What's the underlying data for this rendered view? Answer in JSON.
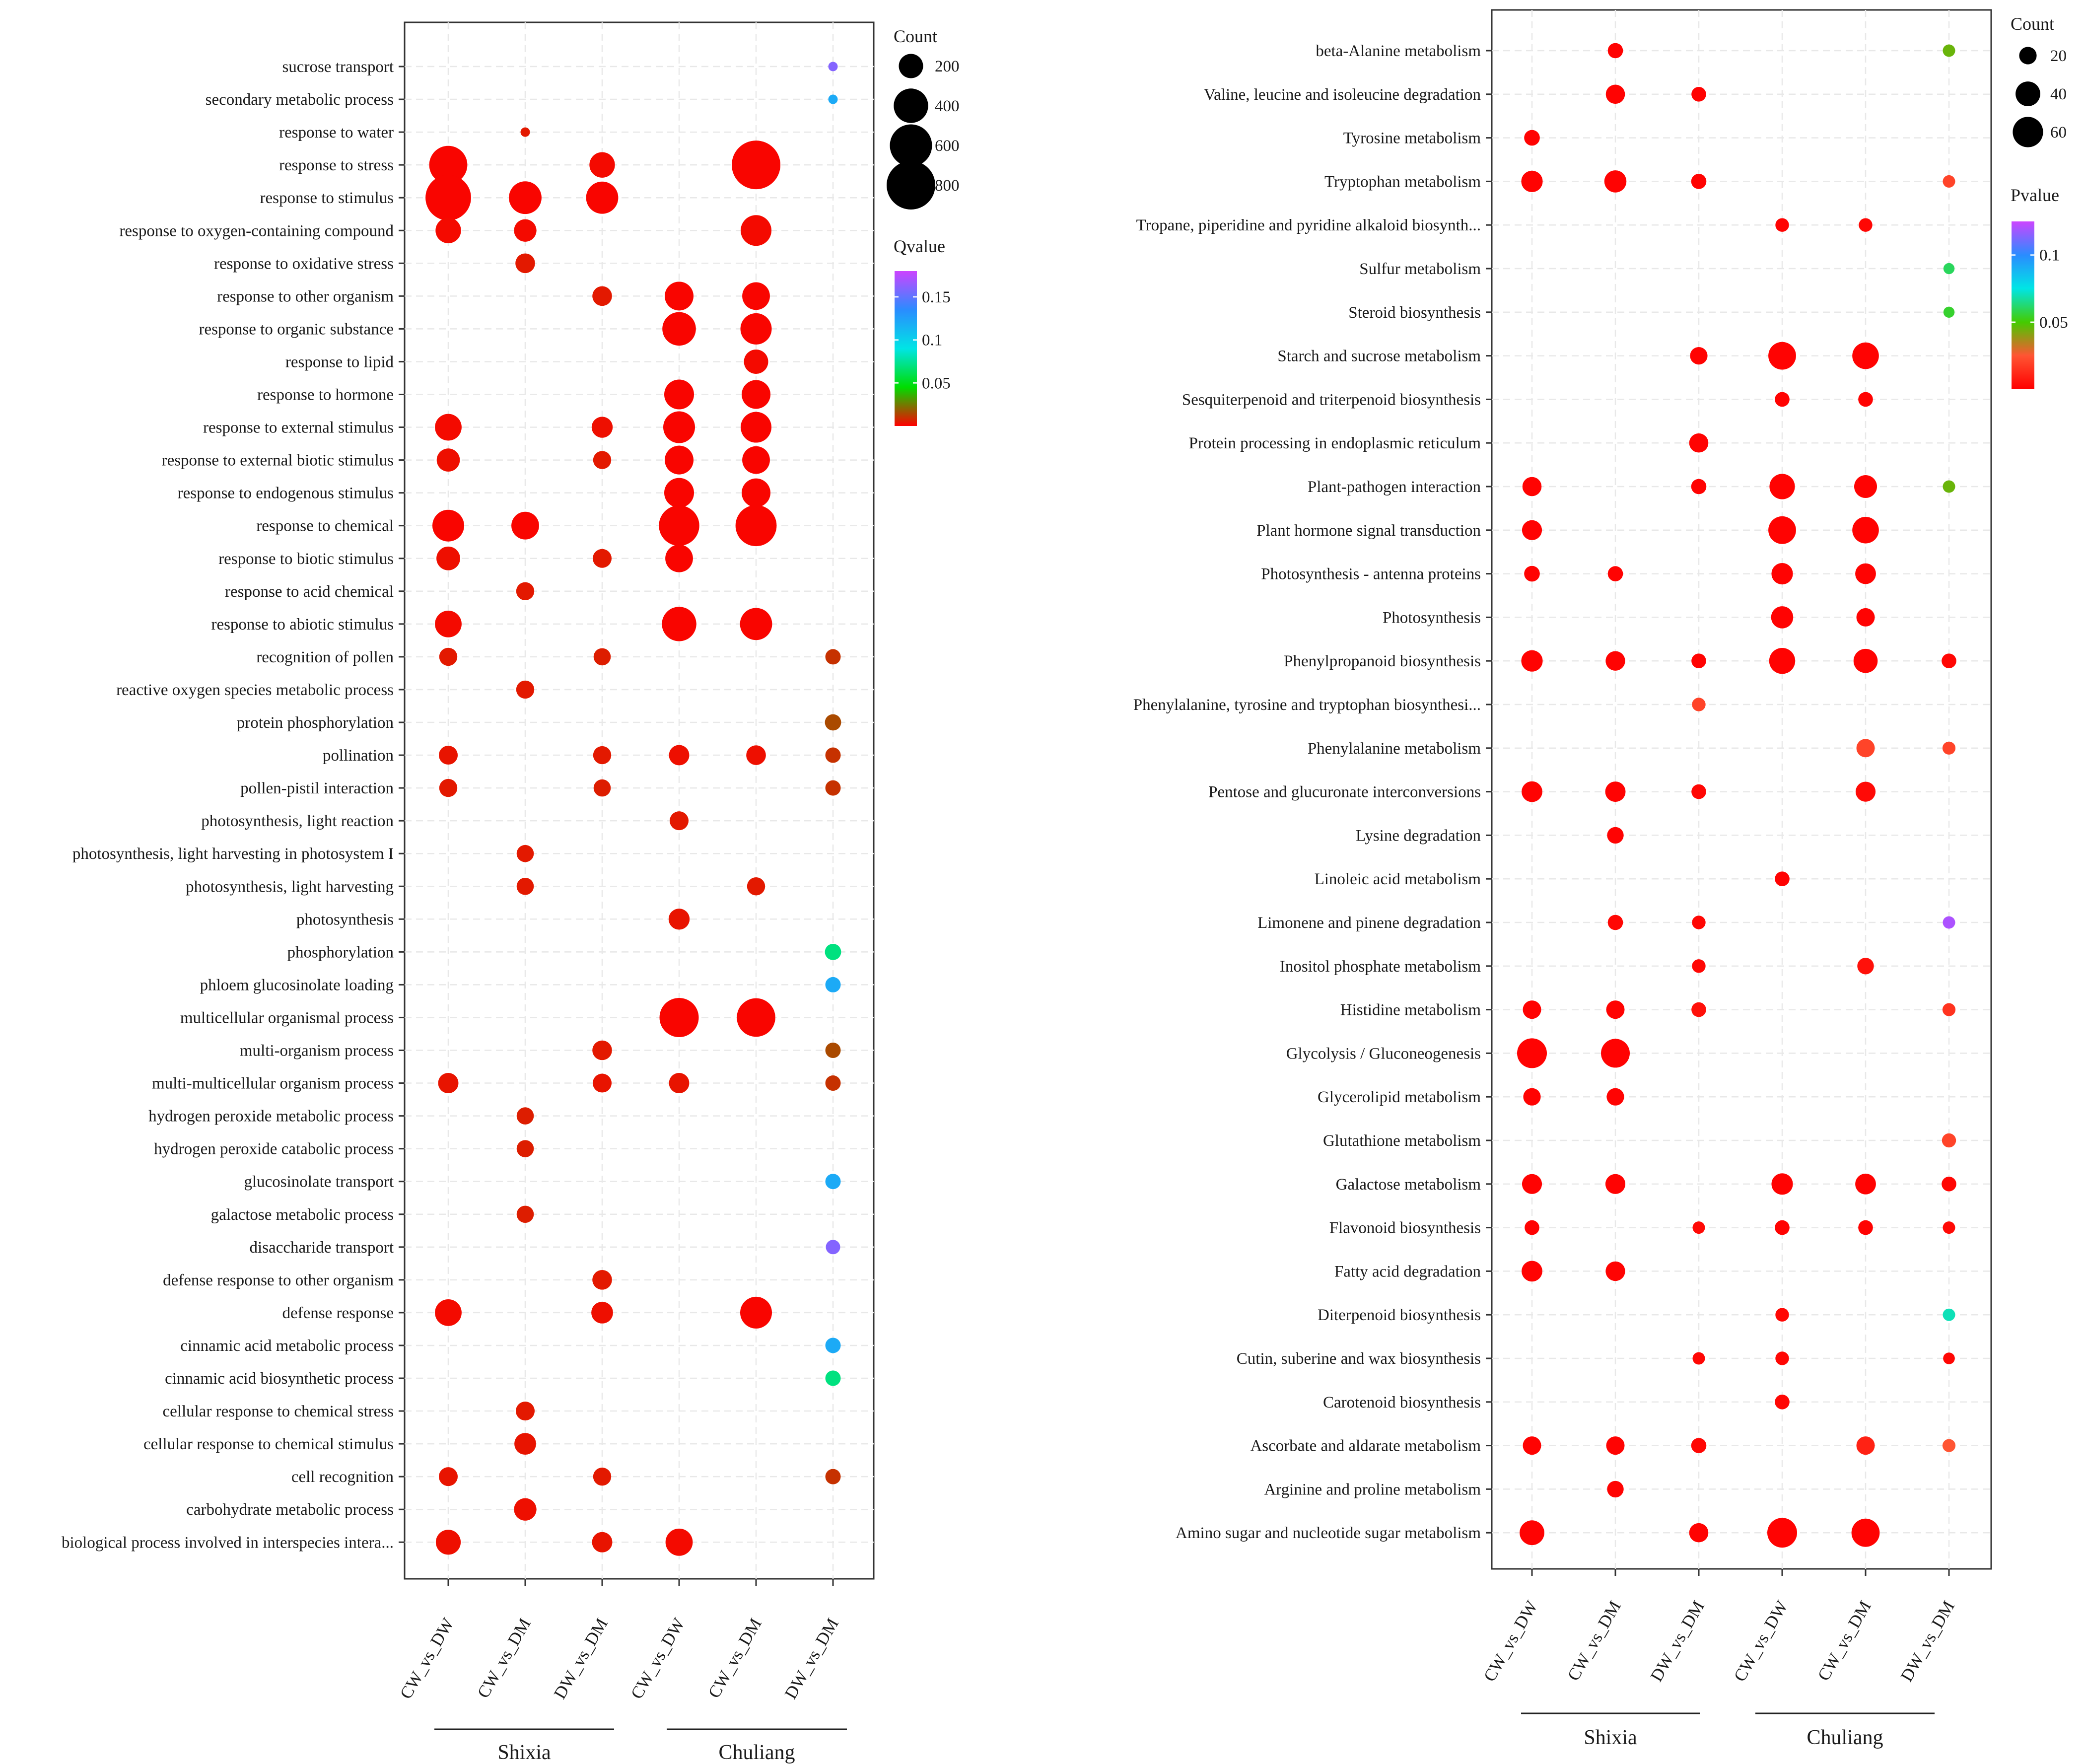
{
  "chart_data": [
    {
      "type": "scatter",
      "subtype": "bubble",
      "panel": "left",
      "xlabel": "",
      "ylabel": "",
      "x_categories": [
        "CW_vs_DW",
        "CW_vs_DM",
        "DW_vs_DM",
        "CW_vs_DW",
        "CW_vs_DM",
        "DW_vs_DM"
      ],
      "groups": [
        {
          "label": "Shixia",
          "columns": [
            0,
            1,
            2
          ]
        },
        {
          "label": "Chuliang",
          "columns": [
            3,
            4,
            5
          ]
        }
      ],
      "y_categories": [
        "sucrose transport",
        "secondary metabolic process",
        "response to water",
        "response to stress",
        "response to stimulus",
        "response to oxygen-containing compound",
        "response to oxidative stress",
        "response to other organism",
        "response to organic substance",
        "response to lipid",
        "response to hormone",
        "response to external stimulus",
        "response to external biotic stimulus",
        "response to endogenous stimulus",
        "response to chemical",
        "response to biotic stimulus",
        "response to acid chemical",
        "response to abiotic stimulus",
        "recognition of pollen",
        "reactive oxygen species metabolic process",
        "protein phosphorylation",
        "pollination",
        "pollen-pistil interaction",
        "photosynthesis, light reaction",
        "photosynthesis, light harvesting in photosystem I",
        "photosynthesis, light harvesting",
        "photosynthesis",
        "phosphorylation",
        "phloem glucosinolate loading",
        "multicellular organismal process",
        "multi-organism process",
        "multi-multicellular organism process",
        "hydrogen peroxide metabolic process",
        "hydrogen peroxide catabolic process",
        "glucosinolate transport",
        "galactose metabolic process",
        "disaccharide transport",
        "defense response to other organism",
        "defense response",
        "cinnamic acid metabolic process",
        "cinnamic acid biosynthetic process",
        "cellular response to chemical stress",
        "cellular response to chemical stimulus",
        "cell recognition",
        "carbohydrate metabolic process",
        "biological process involved in interspecies intera..."
      ],
      "size_legend": {
        "title": "Count",
        "values": [
          200,
          400,
          600,
          800
        ]
      },
      "size_range": [
        0,
        900
      ],
      "color_legend": {
        "title": "Qvalue",
        "min": 0,
        "max": 0.18,
        "ticks": [
          0.05,
          0.1,
          0.15
        ],
        "colors": [
          "#ff0000",
          "#00dd00",
          "#00e5e5",
          "#2a8cff",
          "#cc44ff"
        ]
      },
      "points": [
        [
          0,
          5,
          30,
          0.16
        ],
        [
          1,
          5,
          30,
          0.12
        ],
        [
          2,
          1,
          30,
          0.005
        ],
        [
          3,
          0,
          490,
          0.001
        ],
        [
          3,
          2,
          220,
          0.002
        ],
        [
          3,
          4,
          800,
          0.001
        ],
        [
          4,
          0,
          700,
          0.001
        ],
        [
          4,
          1,
          360,
          0.001
        ],
        [
          4,
          2,
          350,
          0.001
        ],
        [
          5,
          0,
          220,
          0.002
        ],
        [
          5,
          1,
          170,
          0.002
        ],
        [
          5,
          4,
          320,
          0.002
        ],
        [
          6,
          1,
          130,
          0.005
        ],
        [
          7,
          2,
          130,
          0.005
        ],
        [
          7,
          3,
          280,
          0.001
        ],
        [
          7,
          4,
          260,
          0.001
        ],
        [
          8,
          3,
          380,
          0.001
        ],
        [
          8,
          4,
          330,
          0.001
        ],
        [
          9,
          4,
          200,
          0.002
        ],
        [
          10,
          3,
          300,
          0.001
        ],
        [
          10,
          4,
          280,
          0.001
        ],
        [
          11,
          0,
          240,
          0.002
        ],
        [
          11,
          2,
          150,
          0.003
        ],
        [
          11,
          3,
          340,
          0.001
        ],
        [
          11,
          4,
          320,
          0.001
        ],
        [
          12,
          0,
          180,
          0.003
        ],
        [
          12,
          2,
          110,
          0.005
        ],
        [
          12,
          3,
          280,
          0.001
        ],
        [
          12,
          4,
          260,
          0.001
        ],
        [
          13,
          3,
          300,
          0.001
        ],
        [
          13,
          4,
          280,
          0.001
        ],
        [
          14,
          0,
          340,
          0.001
        ],
        [
          14,
          1,
          260,
          0.001
        ],
        [
          14,
          3,
          550,
          0.001
        ],
        [
          14,
          4,
          570,
          0.001
        ],
        [
          15,
          0,
          190,
          0.003
        ],
        [
          15,
          2,
          120,
          0.005
        ],
        [
          15,
          3,
          260,
          0.001
        ],
        [
          16,
          1,
          110,
          0.005
        ],
        [
          17,
          0,
          240,
          0.002
        ],
        [
          17,
          3,
          400,
          0.001
        ],
        [
          17,
          4,
          350,
          0.001
        ],
        [
          18,
          0,
          110,
          0.005
        ],
        [
          18,
          2,
          100,
          0.006
        ],
        [
          18,
          5,
          80,
          0.01
        ],
        [
          19,
          1,
          110,
          0.005
        ],
        [
          20,
          5,
          90,
          0.015
        ],
        [
          21,
          0,
          120,
          0.004
        ],
        [
          21,
          2,
          110,
          0.005
        ],
        [
          21,
          3,
          140,
          0.003
        ],
        [
          21,
          4,
          130,
          0.003
        ],
        [
          21,
          5,
          80,
          0.01
        ],
        [
          22,
          0,
          110,
          0.005
        ],
        [
          22,
          2,
          100,
          0.006
        ],
        [
          22,
          5,
          80,
          0.01
        ],
        [
          23,
          3,
          120,
          0.005
        ],
        [
          24,
          1,
          100,
          0.005
        ],
        [
          25,
          1,
          100,
          0.005
        ],
        [
          25,
          4,
          110,
          0.005
        ],
        [
          26,
          3,
          150,
          0.004
        ],
        [
          27,
          5,
          90,
          0.07
        ],
        [
          28,
          5,
          80,
          0.12
        ],
        [
          29,
          3,
          520,
          0.001
        ],
        [
          29,
          4,
          500,
          0.001
        ],
        [
          30,
          2,
          130,
          0.005
        ],
        [
          30,
          5,
          80,
          0.015
        ],
        [
          31,
          0,
          140,
          0.004
        ],
        [
          31,
          2,
          120,
          0.004
        ],
        [
          31,
          3,
          140,
          0.004
        ],
        [
          31,
          5,
          80,
          0.01
        ],
        [
          32,
          1,
          100,
          0.006
        ],
        [
          33,
          1,
          100,
          0.006
        ],
        [
          34,
          5,
          80,
          0.12
        ],
        [
          35,
          1,
          100,
          0.006
        ],
        [
          36,
          5,
          70,
          0.16
        ],
        [
          37,
          2,
          130,
          0.005
        ],
        [
          38,
          0,
          240,
          0.002
        ],
        [
          38,
          2,
          160,
          0.003
        ],
        [
          38,
          4,
          340,
          0.001
        ],
        [
          39,
          5,
          80,
          0.12
        ],
        [
          40,
          5,
          80,
          0.07
        ],
        [
          41,
          1,
          120,
          0.005
        ],
        [
          42,
          1,
          160,
          0.004
        ],
        [
          43,
          0,
          120,
          0.004
        ],
        [
          43,
          2,
          110,
          0.005
        ],
        [
          43,
          5,
          80,
          0.01
        ],
        [
          44,
          1,
          170,
          0.003
        ],
        [
          45,
          0,
          210,
          0.003
        ],
        [
          45,
          2,
          140,
          0.004
        ],
        [
          45,
          3,
          250,
          0.002
        ]
      ]
    },
    {
      "type": "scatter",
      "subtype": "bubble",
      "panel": "right",
      "xlabel": "",
      "ylabel": "",
      "x_categories": [
        "CW_vs_DW",
        "CW_vs_DM",
        "DW_vs_DM",
        "CW_vs_DW",
        "CW_vs_DM",
        "DW_vs_DM"
      ],
      "groups": [
        {
          "label": "Shixia",
          "columns": [
            0,
            1,
            2
          ]
        },
        {
          "label": "Chuliang",
          "columns": [
            3,
            4,
            5
          ]
        }
      ],
      "y_categories": [
        "beta-Alanine metabolism",
        "Valine, leucine and isoleucine degradation",
        "Tyrosine metabolism",
        "Tryptophan metabolism",
        "Tropane, piperidine and pyridine alkaloid biosynth...",
        "Sulfur metabolism",
        "Steroid biosynthesis",
        "Starch and sucrose metabolism",
        "Sesquiterpenoid and triterpenoid biosynthesis",
        "Protein processing in endoplasmic reticulum",
        "Plant-pathogen interaction",
        "Plant hormone signal transduction",
        "Photosynthesis - antenna proteins",
        "Photosynthesis",
        "Phenylpropanoid biosynthesis",
        "Phenylalanine, tyrosine and tryptophan biosynthesi...",
        "Phenylalanine metabolism",
        "Pentose and glucuronate interconversions",
        "Lysine degradation",
        "Linoleic acid metabolism",
        "Limonene and pinene degradation",
        "Inositol phosphate metabolism",
        "Histidine metabolism",
        "Glycolysis / Gluconeogenesis",
        "Glycerolipid metabolism",
        "Glutathione metabolism",
        "Galactose metabolism",
        "Flavonoid biosynthesis",
        "Fatty acid degradation",
        "Diterpenoid biosynthesis",
        "Cutin, suberine and wax biosynthesis",
        "Carotenoid biosynthesis",
        "Ascorbate and aldarate metabolism",
        "Arginine and proline metabolism",
        "Amino sugar and nucleotide sugar metabolism"
      ],
      "size_legend": {
        "title": "Count",
        "values": [
          20,
          40,
          60
        ]
      },
      "size_range": [
        0,
        70
      ],
      "color_legend": {
        "title": "Pvalue",
        "min": 0,
        "max": 0.125,
        "ticks": [
          0.05,
          0.1
        ],
        "colors": [
          "#ff0000",
          "#ff5533",
          "#44cc00",
          "#00e5e5",
          "#2a8cff",
          "#cc44ff"
        ]
      },
      "points": [
        [
          0,
          1,
          15,
          0.001
        ],
        [
          0,
          5,
          10,
          0.045
        ],
        [
          1,
          1,
          24,
          0.001
        ],
        [
          1,
          2,
          14,
          0.001
        ],
        [
          2,
          0,
          16,
          0.001
        ],
        [
          3,
          0,
          30,
          0.001
        ],
        [
          3,
          1,
          32,
          0.001
        ],
        [
          3,
          2,
          15,
          0.001
        ],
        [
          3,
          5,
          10,
          0.02
        ],
        [
          4,
          3,
          12,
          0.001
        ],
        [
          4,
          4,
          12,
          0.002
        ],
        [
          5,
          5,
          8,
          0.06
        ],
        [
          6,
          5,
          8,
          0.055
        ],
        [
          7,
          2,
          20,
          0.001
        ],
        [
          7,
          3,
          50,
          0.001
        ],
        [
          7,
          4,
          46,
          0.001
        ],
        [
          8,
          3,
          14,
          0.001
        ],
        [
          8,
          4,
          14,
          0.001
        ],
        [
          9,
          2,
          24,
          0.001
        ],
        [
          10,
          0,
          24,
          0.001
        ],
        [
          10,
          2,
          15,
          0.001
        ],
        [
          10,
          3,
          42,
          0.001
        ],
        [
          10,
          4,
          34,
          0.001
        ],
        [
          10,
          5,
          10,
          0.045
        ],
        [
          11,
          0,
          26,
          0.001
        ],
        [
          11,
          3,
          50,
          0.001
        ],
        [
          11,
          4,
          46,
          0.001
        ],
        [
          12,
          0,
          16,
          0.001
        ],
        [
          12,
          1,
          15,
          0.001
        ],
        [
          12,
          3,
          30,
          0.001
        ],
        [
          12,
          4,
          28,
          0.001
        ],
        [
          13,
          3,
          32,
          0.001
        ],
        [
          13,
          4,
          22,
          0.001
        ],
        [
          14,
          0,
          30,
          0.001
        ],
        [
          14,
          1,
          25,
          0.001
        ],
        [
          14,
          2,
          14,
          0.001
        ],
        [
          14,
          3,
          44,
          0.001
        ],
        [
          14,
          4,
          38,
          0.001
        ],
        [
          14,
          5,
          14,
          0.002
        ],
        [
          15,
          2,
          12,
          0.02
        ],
        [
          16,
          4,
          22,
          0.02
        ],
        [
          16,
          5,
          11,
          0.02
        ],
        [
          17,
          0,
          28,
          0.001
        ],
        [
          17,
          1,
          27,
          0.001
        ],
        [
          17,
          2,
          14,
          0.002
        ],
        [
          17,
          4,
          26,
          0.003
        ],
        [
          18,
          1,
          18,
          0.001
        ],
        [
          19,
          3,
          14,
          0.001
        ],
        [
          20,
          1,
          15,
          0.002
        ],
        [
          20,
          2,
          12,
          0.002
        ],
        [
          20,
          5,
          10,
          0.12
        ],
        [
          21,
          2,
          12,
          0.002
        ],
        [
          21,
          4,
          18,
          0.005
        ],
        [
          22,
          0,
          22,
          0.001
        ],
        [
          22,
          1,
          22,
          0.001
        ],
        [
          22,
          2,
          14,
          0.005
        ],
        [
          22,
          5,
          11,
          0.015
        ],
        [
          23,
          0,
          58,
          0.001
        ],
        [
          23,
          1,
          54,
          0.001
        ],
        [
          24,
          0,
          20,
          0.001
        ],
        [
          24,
          1,
          20,
          0.001
        ],
        [
          25,
          5,
          13,
          0.02
        ],
        [
          26,
          0,
          26,
          0.001
        ],
        [
          26,
          1,
          26,
          0.001
        ],
        [
          26,
          3,
          30,
          0.001
        ],
        [
          26,
          4,
          28,
          0.001
        ],
        [
          26,
          5,
          14,
          0.002
        ],
        [
          27,
          0,
          14,
          0.001
        ],
        [
          27,
          2,
          10,
          0.003
        ],
        [
          27,
          3,
          14,
          0.001
        ],
        [
          27,
          4,
          14,
          0.001
        ],
        [
          27,
          5,
          10,
          0.003
        ],
        [
          28,
          0,
          28,
          0.001
        ],
        [
          28,
          1,
          25,
          0.001
        ],
        [
          29,
          3,
          12,
          0.002
        ],
        [
          29,
          5,
          10,
          0.07
        ],
        [
          30,
          2,
          10,
          0.002
        ],
        [
          30,
          3,
          12,
          0.002
        ],
        [
          30,
          5,
          9,
          0.002
        ],
        [
          31,
          3,
          14,
          0.002
        ],
        [
          32,
          0,
          22,
          0.001
        ],
        [
          32,
          1,
          22,
          0.001
        ],
        [
          32,
          2,
          15,
          0.002
        ],
        [
          32,
          4,
          22,
          0.01
        ],
        [
          32,
          5,
          11,
          0.025
        ],
        [
          33,
          1,
          18,
          0.001
        ],
        [
          34,
          0,
          40,
          0.001
        ],
        [
          34,
          2,
          24,
          0.001
        ],
        [
          34,
          3,
          58,
          0.001
        ],
        [
          34,
          4,
          52,
          0.001
        ]
      ]
    }
  ]
}
